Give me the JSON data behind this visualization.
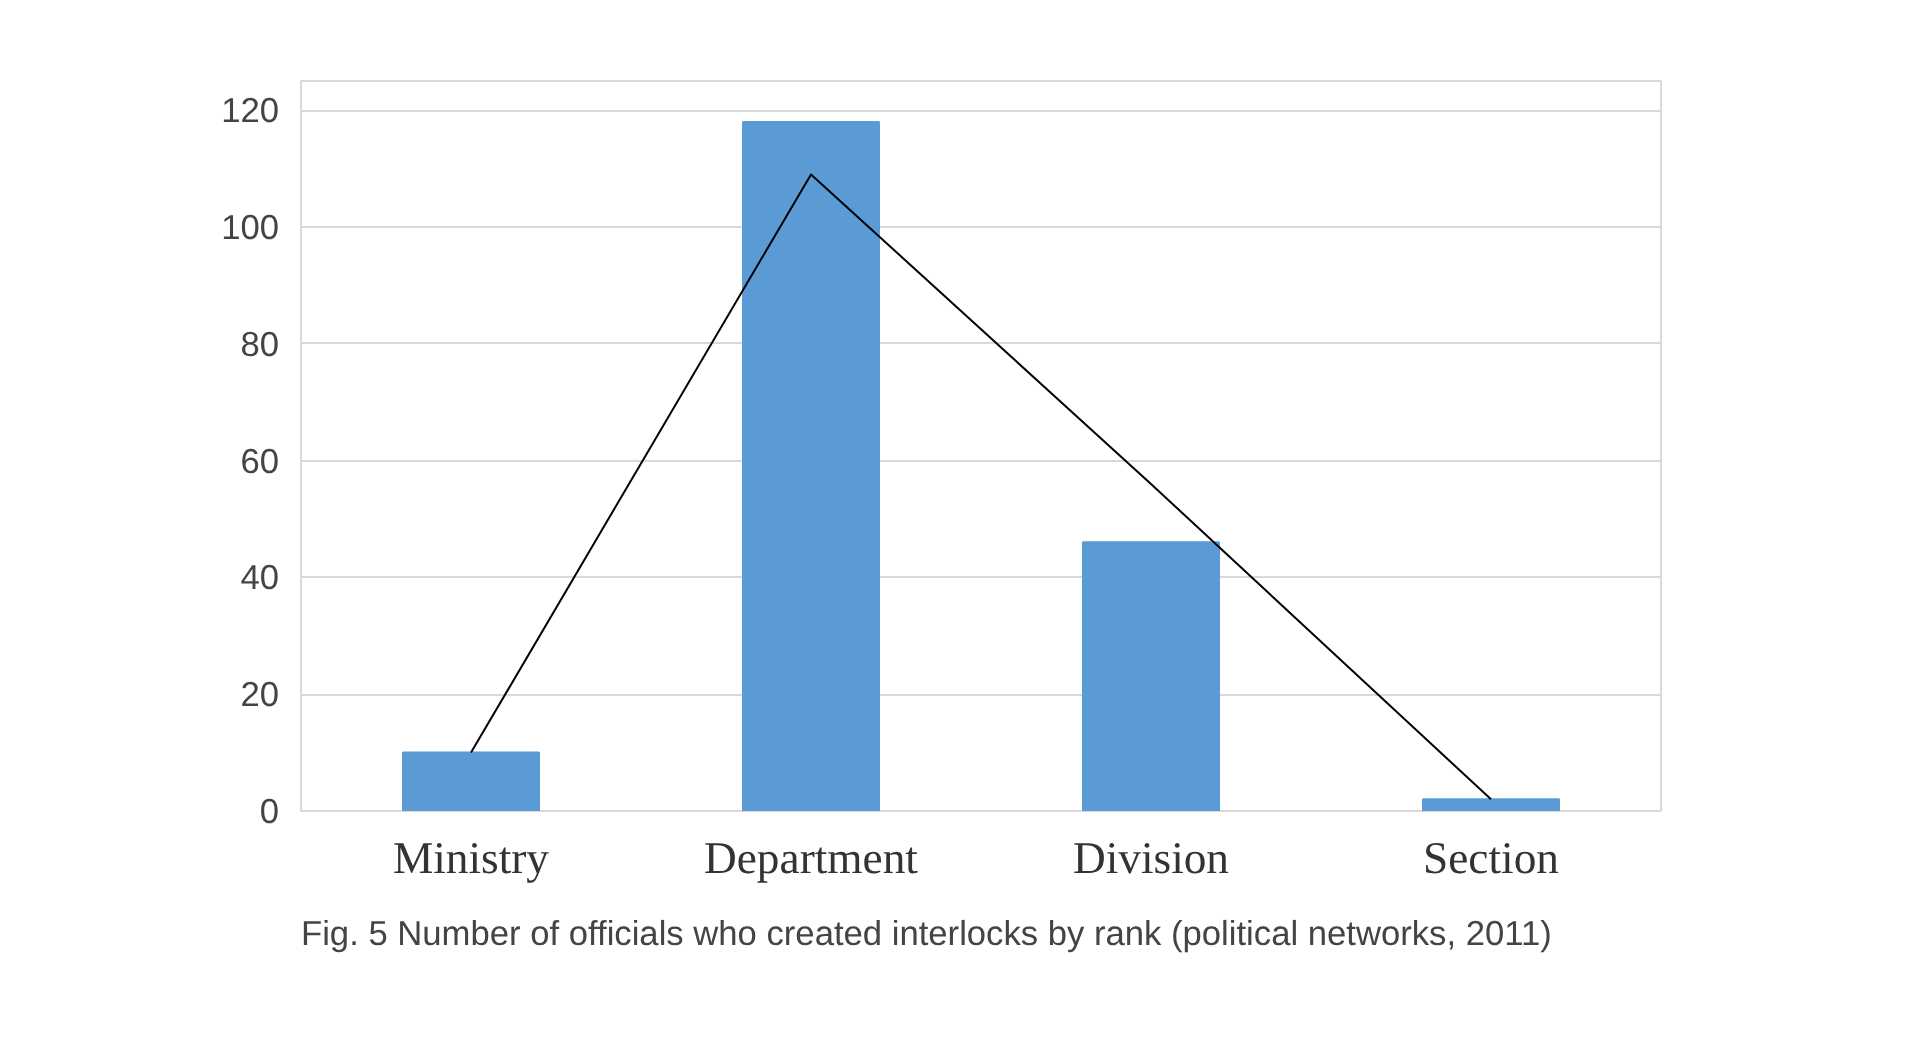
{
  "chart_data": {
    "type": "bar",
    "categories": [
      "Ministry",
      "Department",
      "Division",
      "Section"
    ],
    "series": [
      {
        "color": "#5b9bd5",
        "values": [
          10,
          118,
          46,
          2
        ]
      },
      {
        "type": "line",
        "color": "#000000",
        "values": [
          10,
          109,
          56,
          2
        ]
      }
    ],
    "ylim": [
      0,
      125
    ],
    "yticks": [
      0,
      20,
      40,
      60,
      80,
      100,
      120
    ],
    "grid": "y",
    "marker": "none",
    "annotations": [
      "Fig. 5 Number of officials who created interlocks by rank (political networks, 2011)"
    ]
  }
}
